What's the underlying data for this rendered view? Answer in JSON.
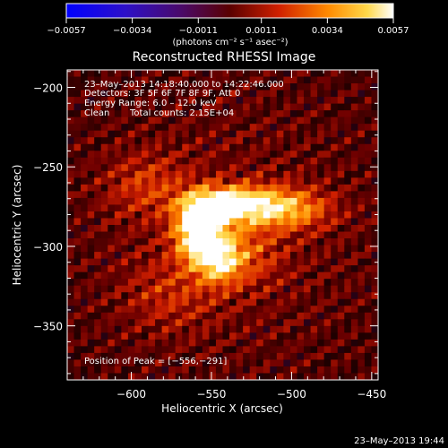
{
  "title": "Reconstructed RHESSI Image",
  "colorbar": {
    "ticks": [
      "−0.0057",
      "−0.0034",
      "−0.0011",
      "0.0011",
      "0.0034",
      "0.0057"
    ],
    "units": "(photons cm⁻² s⁻¹ asec⁻²)",
    "range": [
      -0.0057,
      0.0057
    ],
    "colormap": "blue-purple-red-orange-yellow-white"
  },
  "annotations": {
    "time_range": "23–May–2013 14:18:40.000 to 14:22:46.000",
    "detectors": "Detectors: 3F 5F 6F 7F 8F 9F, Att 0",
    "energy_range": "Energy Range: 6.0 – 12.0 keV",
    "clean": "Clean",
    "total_counts": "Total counts: 2.15E+04",
    "peak_position": "Position of Peak = [−556,−291]"
  },
  "axes": {
    "xlabel": "Heliocentric X (arcsec)",
    "ylabel": "Heliocentric Y (arcsec)",
    "x_ticks": [
      "−600",
      "−550",
      "−500",
      "−450"
    ],
    "y_ticks": [
      "−200",
      "−250",
      "−300",
      "−350"
    ],
    "x_tick_values": [
      -600,
      -550,
      -500,
      -450
    ],
    "y_tick_values": [
      -200,
      -250,
      -300,
      -350
    ],
    "x_range": [
      -640,
      -446
    ],
    "y_range": [
      -384,
      -189
    ]
  },
  "image": {
    "peak": [
      -556,
      -291
    ],
    "lobes": [
      {
        "x": -558,
        "y": -291,
        "amp": 1.0,
        "sx": 10,
        "sy": 13
      },
      {
        "x": -546,
        "y": -274,
        "amp": 0.72,
        "sx": 14,
        "sy": 7
      },
      {
        "x": -525,
        "y": -274,
        "amp": 0.6,
        "sx": 18,
        "sy": 8
      },
      {
        "x": -500,
        "y": -277,
        "amp": 0.42,
        "sx": 18,
        "sy": 9
      },
      {
        "x": -545,
        "y": -308,
        "amp": 0.62,
        "sx": 9,
        "sy": 10
      },
      {
        "x": -530,
        "y": -305,
        "amp": 0.28,
        "sx": 16,
        "sy": 14
      },
      {
        "x": -590,
        "y": -262,
        "amp": 0.25,
        "sx": 18,
        "sy": 14
      },
      {
        "x": -575,
        "y": -330,
        "amp": 0.2,
        "sx": 20,
        "sy": 16
      }
    ]
  },
  "footer_timestamp": "23–May–2013 19:44"
}
